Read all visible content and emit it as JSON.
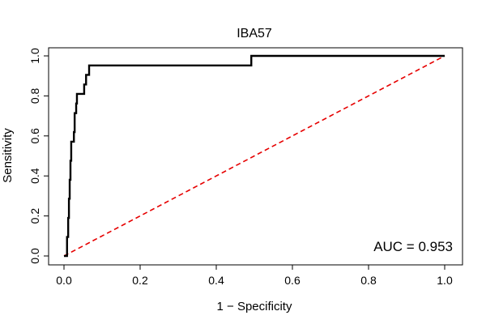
{
  "chart_data": {
    "type": "line",
    "title": "IBA57",
    "xlabel": "1 − Specificity",
    "ylabel": "Sensitivity",
    "xlim": [
      0,
      1
    ],
    "ylim": [
      0,
      1
    ],
    "x_ticks": [
      "0.0",
      "0.2",
      "0.4",
      "0.6",
      "0.8",
      "1.0"
    ],
    "y_ticks": [
      "0.0",
      "0.2",
      "0.4",
      "0.6",
      "0.8",
      "1.0"
    ],
    "grid": false,
    "annotation": "AUC = 0.953",
    "series": [
      {
        "color": "#000000",
        "style": "solid",
        "x": [
          0,
          0.008,
          0.008,
          0.011,
          0.011,
          0.013,
          0.013,
          0.015,
          0.015,
          0.017,
          0.017,
          0.019,
          0.019,
          0.026,
          0.026,
          0.028,
          0.028,
          0.032,
          0.032,
          0.034,
          0.034,
          0.04,
          0.04,
          0.053,
          0.053,
          0.058,
          0.058,
          0.06,
          0.06,
          0.066,
          0.066,
          0.492,
          0.492,
          1.0
        ],
        "y": [
          0,
          0,
          0.095,
          0.095,
          0.19,
          0.19,
          0.286,
          0.286,
          0.381,
          0.381,
          0.476,
          0.476,
          0.571,
          0.571,
          0.619,
          0.619,
          0.714,
          0.714,
          0.762,
          0.762,
          0.81,
          0.81,
          0.81,
          0.81,
          0.857,
          0.857,
          0.905,
          0.905,
          0.905,
          0.905,
          0.952,
          0.952,
          1.0,
          1.0
        ]
      },
      {
        "color": "#e60000",
        "style": "dashed",
        "x": [
          0,
          1
        ],
        "y": [
          0,
          1
        ]
      }
    ]
  }
}
